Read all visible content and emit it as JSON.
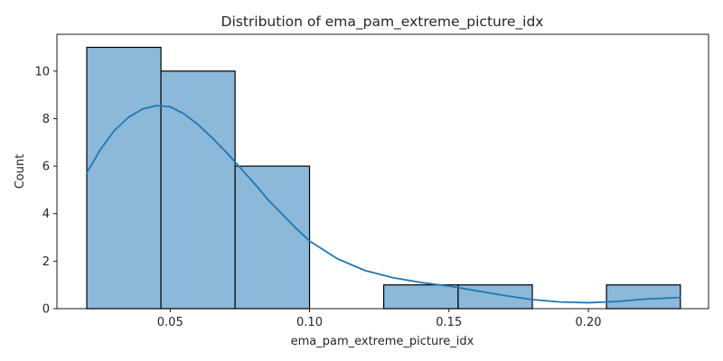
{
  "chart_data": {
    "type": "bar",
    "title": "Distribution of ema_pam_extreme_picture_idx",
    "xlabel": "ema_pam_extreme_picture_idx",
    "ylabel": "Count",
    "xlim": [
      0.0094,
      0.2431
    ],
    "ylim": [
      0,
      11.55
    ],
    "bins": [
      {
        "x0": 0.0201,
        "x1": 0.0467,
        "count": 11
      },
      {
        "x0": 0.0467,
        "x1": 0.0733,
        "count": 10
      },
      {
        "x0": 0.0733,
        "x1": 0.1,
        "count": 6
      },
      {
        "x0": 0.1,
        "x1": 0.1266,
        "count": 0
      },
      {
        "x0": 0.1266,
        "x1": 0.1533,
        "count": 1
      },
      {
        "x0": 0.1533,
        "x1": 0.1799,
        "count": 1
      },
      {
        "x0": 0.1799,
        "x1": 0.2065,
        "count": 0
      },
      {
        "x0": 0.2065,
        "x1": 0.233,
        "count": 1
      }
    ],
    "kde": {
      "x": [
        0.0201,
        0.025,
        0.03,
        0.035,
        0.04,
        0.045,
        0.05,
        0.055,
        0.06,
        0.065,
        0.07,
        0.075,
        0.08,
        0.085,
        0.09,
        0.095,
        0.1,
        0.11,
        0.12,
        0.13,
        0.14,
        0.15,
        0.16,
        0.17,
        0.18,
        0.19,
        0.2,
        0.21,
        0.22,
        0.233
      ],
      "y": [
        5.72,
        6.7,
        7.5,
        8.05,
        8.4,
        8.55,
        8.5,
        8.2,
        7.75,
        7.2,
        6.6,
        5.95,
        5.3,
        4.6,
        4.0,
        3.4,
        2.85,
        2.1,
        1.6,
        1.3,
        1.1,
        0.95,
        0.75,
        0.55,
        0.38,
        0.28,
        0.25,
        0.3,
        0.4,
        0.47
      ]
    },
    "xticks": [
      {
        "value": 0.05,
        "label": "0.05"
      },
      {
        "value": 0.1,
        "label": "0.10"
      },
      {
        "value": 0.15,
        "label": "0.15"
      },
      {
        "value": 0.2,
        "label": "0.20"
      }
    ],
    "yticks": [
      {
        "value": 0,
        "label": "0"
      },
      {
        "value": 2,
        "label": "2"
      },
      {
        "value": 4,
        "label": "4"
      },
      {
        "value": 6,
        "label": "6"
      },
      {
        "value": 8,
        "label": "8"
      },
      {
        "value": 10,
        "label": "10"
      }
    ],
    "grid": false,
    "colors": {
      "bar_fill": "#8cb8da",
      "bar_edge": "#000000",
      "kde_line": "#1f77b4",
      "axis": "#000000"
    }
  }
}
